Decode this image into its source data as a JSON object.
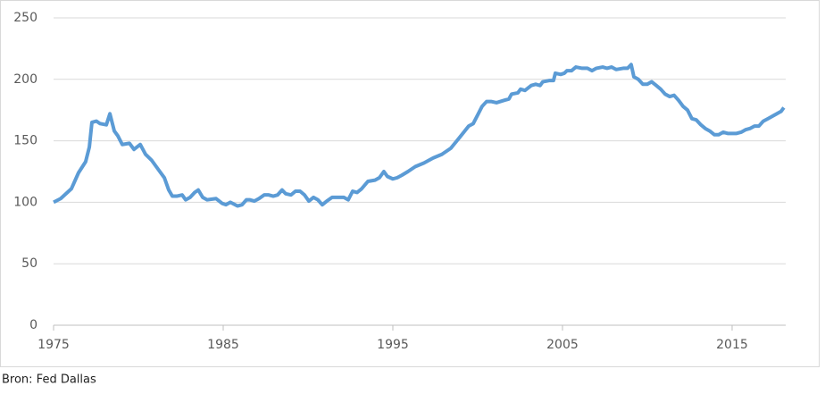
{
  "chart_data": {
    "type": "line",
    "source": "Bron: Fed Dallas",
    "x": [
      1975.0,
      1975.42,
      1976.05,
      1976.47,
      1976.89,
      1977.11,
      1977.26,
      1977.53,
      1977.74,
      1978.11,
      1978.32,
      1978.58,
      1978.79,
      1979.05,
      1979.47,
      1979.74,
      1980.11,
      1980.42,
      1980.79,
      1981.21,
      1981.53,
      1981.79,
      1982.0,
      1982.26,
      1982.58,
      1982.79,
      1983.05,
      1983.32,
      1983.53,
      1983.79,
      1984.05,
      1984.58,
      1984.95,
      1985.16,
      1985.42,
      1985.84,
      1986.11,
      1986.37,
      1986.58,
      1986.84,
      1987.11,
      1987.42,
      1987.68,
      1987.95,
      1988.21,
      1988.47,
      1988.68,
      1989.0,
      1989.26,
      1989.53,
      1989.79,
      1990.05,
      1990.32,
      1990.58,
      1990.84,
      1991.11,
      1991.42,
      1991.84,
      1992.11,
      1992.37,
      1992.63,
      1992.89,
      1993.16,
      1993.53,
      1993.95,
      1994.21,
      1994.47,
      1994.68,
      1995.0,
      1995.26,
      1995.53,
      1995.89,
      1996.32,
      1996.84,
      1997.37,
      1997.89,
      1998.42,
      1998.95,
      1999.47,
      1999.74,
      2000.26,
      2000.53,
      2000.79,
      2001.11,
      2001.58,
      2001.84,
      2002.0,
      2002.37,
      2002.53,
      2002.79,
      2003.16,
      2003.42,
      2003.68,
      2003.84,
      2004.21,
      2004.47,
      2004.58,
      2004.89,
      2005.11,
      2005.26,
      2005.53,
      2005.79,
      2006.16,
      2006.47,
      2006.74,
      2007.0,
      2007.37,
      2007.63,
      2007.89,
      2008.16,
      2008.58,
      2008.84,
      2009.05,
      2009.21,
      2009.47,
      2009.74,
      2010.0,
      2010.26,
      2010.53,
      2010.79,
      2011.05,
      2011.32,
      2011.58,
      2011.84,
      2012.11,
      2012.37,
      2012.63,
      2012.89,
      2013.16,
      2013.42,
      2013.68,
      2013.95,
      2014.21,
      2014.47,
      2014.74,
      2015.0,
      2015.26,
      2015.53,
      2015.79,
      2016.05,
      2016.32,
      2016.58,
      2016.84,
      2017.11,
      2017.37,
      2017.63,
      2017.89,
      2018.05
    ],
    "series": [
      {
        "color": "#5b9bd5",
        "values": [
          100,
          103,
          111,
          124,
          133,
          145,
          165,
          166,
          164,
          163,
          172,
          158,
          154,
          147,
          148,
          143,
          147,
          139,
          134,
          126,
          120,
          110,
          105,
          105,
          106,
          102,
          104,
          108,
          110,
          104,
          102,
          103,
          99,
          98,
          100,
          97,
          98,
          102,
          102,
          101,
          103,
          106,
          106,
          105,
          106,
          110,
          107,
          106,
          109,
          109,
          106,
          101,
          104,
          102,
          98,
          101,
          104,
          104,
          104,
          102,
          109,
          108,
          111,
          117,
          118,
          120,
          125,
          121,
          119,
          120,
          122,
          125,
          129,
          132,
          136,
          139,
          144,
          153,
          162,
          164,
          178,
          182,
          182,
          181,
          183,
          184,
          188,
          189,
          192,
          191,
          195,
          196,
          195,
          198,
          199,
          199,
          205,
          204,
          205,
          207,
          207,
          210,
          209,
          209,
          207,
          209,
          210,
          209,
          210,
          208,
          209,
          209,
          212,
          202,
          200,
          196,
          196,
          198,
          195,
          192,
          188,
          186,
          187,
          183,
          178,
          175,
          168,
          167,
          163,
          160,
          158,
          155,
          155,
          157,
          156,
          156,
          156,
          157,
          159,
          160,
          162,
          162,
          166,
          168,
          170,
          172,
          174,
          177
        ]
      }
    ],
    "xlim": [
      1975,
      2018.16
    ],
    "xticks": [
      1975,
      1985,
      1995,
      2005,
      2015
    ],
    "ylim": [
      0,
      250
    ],
    "yticks": [
      0,
      50,
      100,
      150,
      200,
      250
    ],
    "grid": true
  }
}
